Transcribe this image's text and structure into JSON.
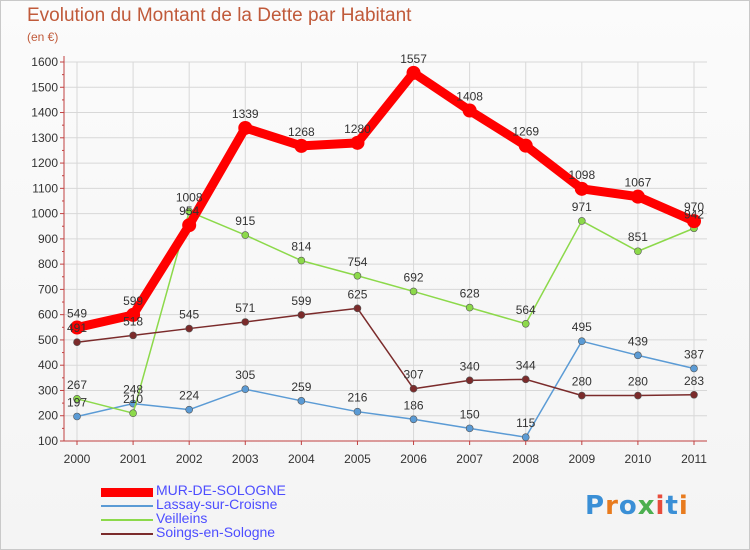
{
  "title": "Evolution du Montant de la Dette par Habitant",
  "subtitle": "(en €)",
  "logo": {
    "letters": [
      "P",
      "r",
      "o",
      "x",
      "i",
      "t",
      "i"
    ],
    "colors": [
      "#3a8fd6",
      "#e87b1e",
      "#3a8fd6",
      "#4caf50",
      "#e74c3c",
      "#3a8fd6",
      "#e87b1e"
    ]
  },
  "chart_data": {
    "type": "line",
    "title": "Evolution du Montant de la Dette par Habitant",
    "subtitle": "(en €)",
    "xlabel": "",
    "ylabel": "",
    "ylim": [
      100,
      1600
    ],
    "yticks": [
      100,
      200,
      300,
      400,
      500,
      600,
      700,
      800,
      900,
      1000,
      1100,
      1200,
      1300,
      1400,
      1500,
      1600
    ],
    "x": [
      "2000",
      "2001",
      "2002",
      "2003",
      "2004",
      "2005",
      "2006",
      "2007",
      "2008",
      "2009",
      "2010",
      "2011"
    ],
    "grid": true,
    "legend_position": "bottom-left",
    "series": [
      {
        "name": "MUR-DE-SOLOGNE",
        "color": "#ff0000",
        "values": [
          549,
          599,
          954,
          1339,
          1268,
          1280,
          1557,
          1408,
          1269,
          1098,
          1067,
          970
        ]
      },
      {
        "name": "Lassay-sur-Croisne",
        "color": "#5b9bd5",
        "values": [
          197,
          248,
          224,
          305,
          259,
          216,
          186,
          150,
          115,
          495,
          439,
          387
        ]
      },
      {
        "name": "Veilleins",
        "color": "#8cd94a",
        "values": [
          267,
          210,
          1008,
          915,
          814,
          754,
          692,
          628,
          564,
          971,
          851,
          942
        ]
      },
      {
        "name": "Soings-en-Sologne",
        "color": "#7b2b2b",
        "values": [
          491,
          518,
          545,
          571,
          599,
          625,
          307,
          340,
          344,
          280,
          280,
          283
        ]
      }
    ]
  }
}
